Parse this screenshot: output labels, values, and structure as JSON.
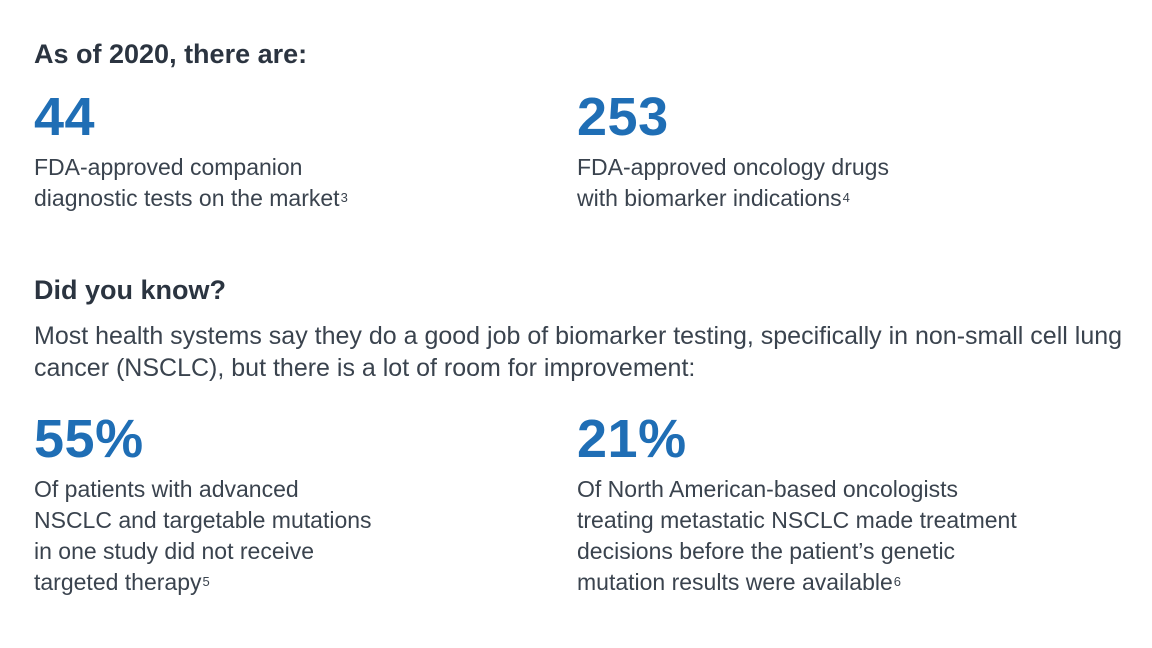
{
  "section1": {
    "heading": "As of 2020, there are:",
    "stats": [
      {
        "number": "44",
        "lines": [
          "FDA-approved companion",
          "diagnostic tests on the market"
        ],
        "ref": "3"
      },
      {
        "number": "253",
        "lines": [
          "FDA-approved oncology drugs",
          "with biomarker indications"
        ],
        "ref": "4"
      }
    ]
  },
  "section2": {
    "heading": "Did you know?",
    "intro": "Most health systems say they do a good job of biomarker testing, specifically in non-small cell lung cancer (NSCLC), but there is a lot of room for improvement:",
    "stats": [
      {
        "number": "55%",
        "lines": [
          "Of patients with advanced",
          "NSCLC and targetable mutations",
          "in one study did not receive",
          "targeted therapy"
        ],
        "ref": "5"
      },
      {
        "number": "21%",
        "lines": [
          "Of North American-based oncologists",
          "treating metastatic NSCLC made treatment",
          "decisions before the patient’s genetic",
          "mutation results were available"
        ],
        "ref": "6"
      }
    ]
  },
  "colors": {
    "accent": "#1f6eb5",
    "heading": "#2b3440",
    "body": "#3a434e"
  }
}
